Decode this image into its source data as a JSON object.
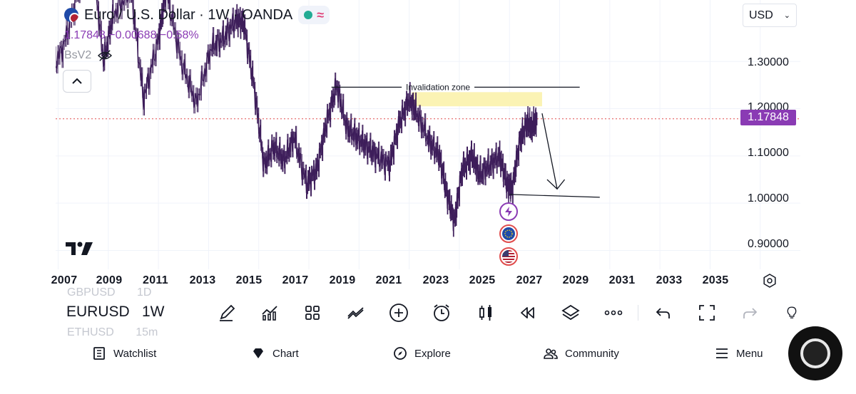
{
  "legend": {
    "symbol_text": "Euro / U.S. Dollar · 1W · OANDA",
    "price_change": "1.17848 −0.00688 −0.58%",
    "indicator": "BsV2"
  },
  "currency": "USD",
  "price_axis": {
    "labels": [
      "1.30000",
      "1.20000",
      "1.10000",
      "1.00000",
      "0.90000"
    ],
    "current_price": "1.17848"
  },
  "time_axis": {
    "labels": [
      "2007",
      "2009",
      "2011",
      "2013",
      "2015",
      "2017",
      "2019",
      "2021",
      "2023",
      "2025",
      "2027",
      "2029",
      "2031",
      "2033",
      "2035"
    ]
  },
  "annotations": {
    "invalidation_label": "Invalidation zone"
  },
  "symbol_list": {
    "prev_symbol": "GBPUSD",
    "prev_interval": "1D",
    "current_symbol": "EURUSD",
    "current_interval": "1W",
    "next_symbol": "ETHUSD",
    "next_interval": "15m"
  },
  "toolbar": {
    "tools": [
      "drawing-tools",
      "indicators",
      "layout",
      "compare",
      "add",
      "alert",
      "chart-type",
      "replay",
      "layers",
      "more",
      "undo",
      "fullscreen",
      "redo",
      "ideas"
    ]
  },
  "bottom_nav": {
    "items": [
      "Watchlist",
      "Chart",
      "Explore",
      "Community",
      "Menu"
    ]
  },
  "chart_data": {
    "type": "line",
    "title": "Euro / U.S. Dollar · 1W · OANDA",
    "x": [
      2006.6,
      2007.2,
      2007.8,
      2008.3,
      2008.8,
      2009.2,
      2009.9,
      2010.4,
      2011.0,
      2011.3,
      2011.9,
      2012.5,
      2013.1,
      2013.6,
      2014.1,
      2014.4,
      2014.8,
      2015.2,
      2015.6,
      2016.0,
      2016.4,
      2016.9,
      2017.3,
      2017.7,
      2018.1,
      2018.5,
      2018.9,
      2019.3,
      2019.7,
      2020.2,
      2020.6,
      2021.0,
      2021.3,
      2021.8,
      2022.2,
      2022.5,
      2022.8,
      2023.1,
      2023.5,
      2023.8,
      2024.2,
      2024.6,
      2024.9,
      2025.1,
      2025.4,
      2025.7,
      2025.9,
      2026.1
    ],
    "y": [
      1.27,
      1.33,
      1.45,
      1.55,
      1.3,
      1.4,
      1.45,
      1.22,
      1.35,
      1.45,
      1.3,
      1.21,
      1.33,
      1.35,
      1.39,
      1.38,
      1.25,
      1.08,
      1.12,
      1.09,
      1.14,
      1.04,
      1.07,
      1.17,
      1.25,
      1.16,
      1.14,
      1.12,
      1.1,
      1.08,
      1.17,
      1.22,
      1.19,
      1.13,
      1.1,
      1.02,
      0.96,
      1.07,
      1.1,
      1.06,
      1.08,
      1.1,
      1.04,
      1.03,
      1.13,
      1.17,
      1.16,
      1.18
    ],
    "ylim": [
      0.86,
      1.43
    ],
    "xlim": [
      2006.9,
      2036.6
    ],
    "series": [
      {
        "name": "EURUSD",
        "color": "#3d1d5a"
      }
    ],
    "current_price": 1.17848,
    "invalidation_level": 1.25,
    "invalidation_zone": [
      1.205,
      1.235
    ],
    "target_level": 1.02,
    "colors": {
      "accent": "#8a3bb4",
      "zone": "#fbf3b4",
      "line": "#131722",
      "price_line": "#e04d4d"
    }
  }
}
